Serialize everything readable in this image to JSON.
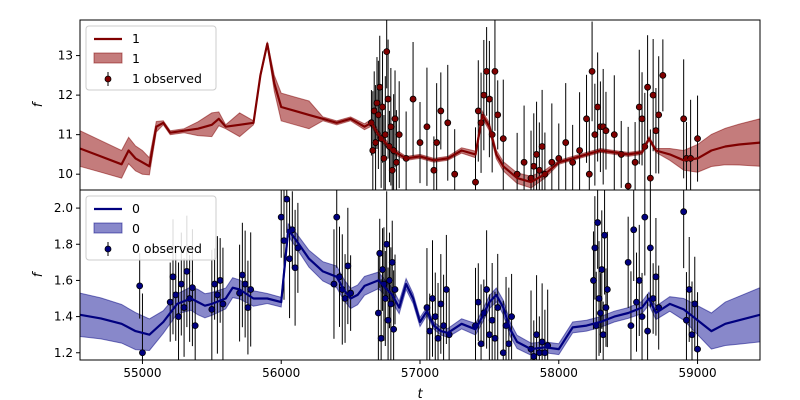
{
  "chart_data": [
    {
      "type": "line",
      "panel": "top",
      "ylabel": "f",
      "xlabel": "",
      "xlim": [
        54550,
        59450
      ],
      "ylim": [
        9.6,
        13.9
      ],
      "yticks": [
        10,
        11,
        12,
        13
      ],
      "legend_position": "upper-left",
      "legend": {
        "line": "1",
        "band": "1",
        "observed": "1 observed"
      },
      "colors": {
        "line": "#800000",
        "band": "#b05050",
        "point": "#800000"
      },
      "band_halfwidth": [
        [
          54550,
          0.45
        ],
        [
          55000,
          0.3
        ],
        [
          55150,
          0.05
        ],
        [
          55300,
          0.05
        ],
        [
          55500,
          0.3
        ],
        [
          55600,
          0.05
        ],
        [
          55700,
          0.3
        ],
        [
          55800,
          0.05
        ],
        [
          55900,
          0.05
        ],
        [
          56000,
          0.35
        ],
        [
          56200,
          0.35
        ],
        [
          56300,
          0.05
        ],
        [
          56500,
          0.05
        ],
        [
          56700,
          0.1
        ],
        [
          56900,
          0.05
        ],
        [
          57200,
          0.05
        ],
        [
          57500,
          0.1
        ],
        [
          57800,
          0.15
        ],
        [
          58000,
          0.05
        ],
        [
          58400,
          0.05
        ],
        [
          58700,
          0.05
        ],
        [
          59000,
          0.35
        ],
        [
          59450,
          0.6
        ]
      ],
      "series": [
        {
          "kind": "model",
          "x": [
            54550,
            54700,
            54850,
            54900,
            54950,
            55000,
            55050,
            55100,
            55150,
            55200,
            55300,
            55400,
            55500,
            55550,
            55600,
            55700,
            55800,
            55850,
            55900,
            55950,
            56000,
            56100,
            56200,
            56300,
            56400,
            56500,
            56600,
            56650,
            56700,
            56750,
            56800,
            56850,
            56900,
            57000,
            57100,
            57200,
            57300,
            57400,
            57450,
            57500,
            57550,
            57600,
            57700,
            57800,
            57900,
            58000,
            58100,
            58200,
            58300,
            58400,
            58500,
            58600,
            58650,
            58700,
            58800,
            58900,
            59000,
            59100,
            59200,
            59300,
            59450
          ],
          "y": [
            10.65,
            10.45,
            10.25,
            10.6,
            10.4,
            10.3,
            10.2,
            11.2,
            11.3,
            11.05,
            11.1,
            11.15,
            11.25,
            11.4,
            11.2,
            11.25,
            11.3,
            12.5,
            13.3,
            12.3,
            11.7,
            11.6,
            11.5,
            11.4,
            11.3,
            11.4,
            11.2,
            11.3,
            11.0,
            10.8,
            10.6,
            10.5,
            10.4,
            10.45,
            10.35,
            10.4,
            10.6,
            10.5,
            11.5,
            11.2,
            10.5,
            10.2,
            9.9,
            9.8,
            10.0,
            10.3,
            10.4,
            10.5,
            10.6,
            10.55,
            10.5,
            10.55,
            10.9,
            10.6,
            10.5,
            10.35,
            10.4,
            10.6,
            10.7,
            10.75,
            10.8
          ]
        },
        {
          "kind": "observed",
          "x": [
            56650,
            56660,
            56670,
            56680,
            56690,
            56700,
            56710,
            56720,
            56730,
            56740,
            56750,
            56760,
            56770,
            56780,
            56790,
            56800,
            56810,
            56820,
            56830,
            56850,
            56900,
            56950,
            57000,
            57050,
            57100,
            57120,
            57150,
            57200,
            57250,
            57400,
            57420,
            57440,
            57460,
            57480,
            57500,
            57520,
            57540,
            57560,
            57600,
            57700,
            57750,
            57800,
            57820,
            57840,
            57860,
            57880,
            57900,
            57950,
            58000,
            58050,
            58100,
            58150,
            58200,
            58220,
            58240,
            58260,
            58280,
            58300,
            58320,
            58340,
            58400,
            58450,
            58500,
            58550,
            58580,
            58600,
            58620,
            58640,
            58660,
            58680,
            58700,
            58720,
            58750,
            58900,
            58920,
            58950,
            59000
          ],
          "y": [
            11.3,
            10.6,
            11.6,
            10.8,
            11.8,
            11.5,
            12.2,
            10.9,
            11.7,
            10.4,
            11.0,
            13.1,
            11.9,
            10.7,
            11.2,
            10.1,
            10.6,
            11.4,
            10.3,
            11.0,
            10.4,
            11.9,
            10.8,
            11.2,
            10.1,
            10.8,
            11.6,
            11.3,
            10.0,
            9.8,
            11.6,
            11.3,
            12.0,
            12.6,
            11.9,
            11.0,
            12.6,
            11.5,
            10.9,
            10.0,
            10.3,
            9.9,
            10.2,
            10.5,
            10.1,
            10.7,
            10.0,
            10.3,
            10.4,
            10.8,
            10.3,
            10.6,
            11.4,
            10.0,
            12.6,
            11.0,
            11.7,
            11.2,
            11.2,
            11.1,
            11.0,
            10.5,
            9.7,
            10.3,
            11.7,
            11.4,
            10.7,
            12.2,
            9.9,
            12.0,
            11.1,
            11.5,
            12.5,
            11.4,
            10.4,
            10.4,
            10.9
          ]
        }
      ]
    },
    {
      "type": "line",
      "panel": "bottom",
      "ylabel": "f",
      "xlabel": "t",
      "xlim": [
        54550,
        59450
      ],
      "ylim": [
        1.16,
        2.1
      ],
      "xticks": [
        55000,
        56000,
        57000,
        58000,
        59000
      ],
      "yticks": [
        1.2,
        1.4,
        1.6,
        1.8,
        2.0
      ],
      "legend_position": "upper-left",
      "legend": {
        "line": "0",
        "band": "0",
        "observed": "0 observed"
      },
      "colors": {
        "line": "#00007f",
        "band": "#6060b8",
        "point": "#000080"
      },
      "band_halfwidth": [
        [
          54550,
          0.12
        ],
        [
          55000,
          0.1
        ],
        [
          55200,
          0.05
        ],
        [
          55400,
          0.07
        ],
        [
          55550,
          0.06
        ],
        [
          55750,
          0.05
        ],
        [
          55950,
          0.02
        ],
        [
          56100,
          0.04
        ],
        [
          56400,
          0.06
        ],
        [
          56650,
          0.05
        ],
        [
          56900,
          0.03
        ],
        [
          57100,
          0.02
        ],
        [
          57600,
          0.04
        ],
        [
          57900,
          0.03
        ],
        [
          58100,
          0.03
        ],
        [
          58500,
          0.03
        ],
        [
          58800,
          0.04
        ],
        [
          59000,
          0.08
        ],
        [
          59200,
          0.12
        ],
        [
          59450,
          0.15
        ]
      ],
      "series": [
        {
          "kind": "model",
          "x": [
            54550,
            54700,
            54850,
            54950,
            55050,
            55150,
            55250,
            55350,
            55400,
            55450,
            55500,
            55600,
            55650,
            55700,
            55800,
            55900,
            56000,
            56050,
            56100,
            56200,
            56300,
            56400,
            56450,
            56500,
            56550,
            56600,
            56700,
            56800,
            56850,
            56900,
            56950,
            57000,
            57050,
            57100,
            57150,
            57200,
            57300,
            57400,
            57450,
            57500,
            57550,
            57600,
            57650,
            57700,
            57800,
            57900,
            58000,
            58050,
            58100,
            58200,
            58300,
            58400,
            58500,
            58600,
            58650,
            58700,
            58800,
            58900,
            59000,
            59100,
            59200,
            59300,
            59450
          ],
          "y": [
            1.41,
            1.39,
            1.36,
            1.32,
            1.3,
            1.37,
            1.47,
            1.5,
            1.48,
            1.46,
            1.47,
            1.5,
            1.56,
            1.55,
            1.5,
            1.5,
            1.48,
            1.88,
            1.83,
            1.72,
            1.65,
            1.62,
            1.55,
            1.5,
            1.52,
            1.57,
            1.6,
            1.52,
            1.45,
            1.58,
            1.5,
            1.37,
            1.43,
            1.35,
            1.32,
            1.31,
            1.36,
            1.33,
            1.4,
            1.48,
            1.52,
            1.45,
            1.33,
            1.26,
            1.22,
            1.23,
            1.22,
            1.28,
            1.34,
            1.35,
            1.37,
            1.4,
            1.42,
            1.45,
            1.5,
            1.42,
            1.47,
            1.44,
            1.38,
            1.32,
            1.36,
            1.38,
            1.41
          ]
        },
        {
          "kind": "observed",
          "x": [
            54980,
            55000,
            55200,
            55220,
            55240,
            55260,
            55280,
            55300,
            55320,
            55340,
            55360,
            55380,
            55500,
            55520,
            55540,
            55560,
            55580,
            55700,
            55720,
            55740,
            55760,
            55780,
            56000,
            56020,
            56040,
            56060,
            56080,
            56100,
            56120,
            56380,
            56400,
            56420,
            56440,
            56460,
            56480,
            56500,
            56700,
            56710,
            56720,
            56730,
            56740,
            56750,
            56760,
            56770,
            56780,
            56790,
            56800,
            56810,
            56820,
            57050,
            57070,
            57090,
            57110,
            57130,
            57150,
            57170,
            57190,
            57210,
            57400,
            57420,
            57440,
            57460,
            57480,
            57500,
            57520,
            57540,
            57560,
            57600,
            57620,
            57640,
            57660,
            57800,
            57820,
            57840,
            57860,
            57880,
            57900,
            57920,
            58250,
            58260,
            58270,
            58280,
            58290,
            58300,
            58310,
            58320,
            58330,
            58340,
            58350,
            58500,
            58520,
            58540,
            58560,
            58580,
            58600,
            58620,
            58640,
            58660,
            58680,
            58700,
            58720,
            58900,
            58920,
            58940,
            58960,
            58980,
            59000
          ],
          "y": [
            1.57,
            1.2,
            1.48,
            1.62,
            1.52,
            1.4,
            1.58,
            1.45,
            1.65,
            1.5,
            1.56,
            1.35,
            1.44,
            1.58,
            1.52,
            1.6,
            1.47,
            1.53,
            1.63,
            1.58,
            1.45,
            1.55,
            1.95,
            1.82,
            2.05,
            1.72,
            1.88,
            1.67,
            1.78,
            1.58,
            1.95,
            1.62,
            1.55,
            1.5,
            1.68,
            1.53,
            1.42,
            1.75,
            1.28,
            1.66,
            1.58,
            1.5,
            1.8,
            1.38,
            1.6,
            1.47,
            1.7,
            1.33,
            1.55,
            1.45,
            1.32,
            1.5,
            1.4,
            1.28,
            1.47,
            1.35,
            1.55,
            1.3,
            1.35,
            1.48,
            1.25,
            1.42,
            1.55,
            1.3,
            1.38,
            1.28,
            1.45,
            1.2,
            1.35,
            1.25,
            1.4,
            1.22,
            1.18,
            1.3,
            1.2,
            1.26,
            1.2,
            1.24,
            1.6,
            1.78,
            1.35,
            1.92,
            1.5,
            1.42,
            1.66,
            1.3,
            1.85,
            1.45,
            1.55,
            1.7,
            1.35,
            1.88,
            1.48,
            1.6,
            1.4,
            1.95,
            1.32,
            1.78,
            1.5,
            1.62,
            1.45,
            1.98,
            1.38,
            1.55,
            1.3,
            1.47,
            1.22
          ]
        }
      ]
    }
  ]
}
